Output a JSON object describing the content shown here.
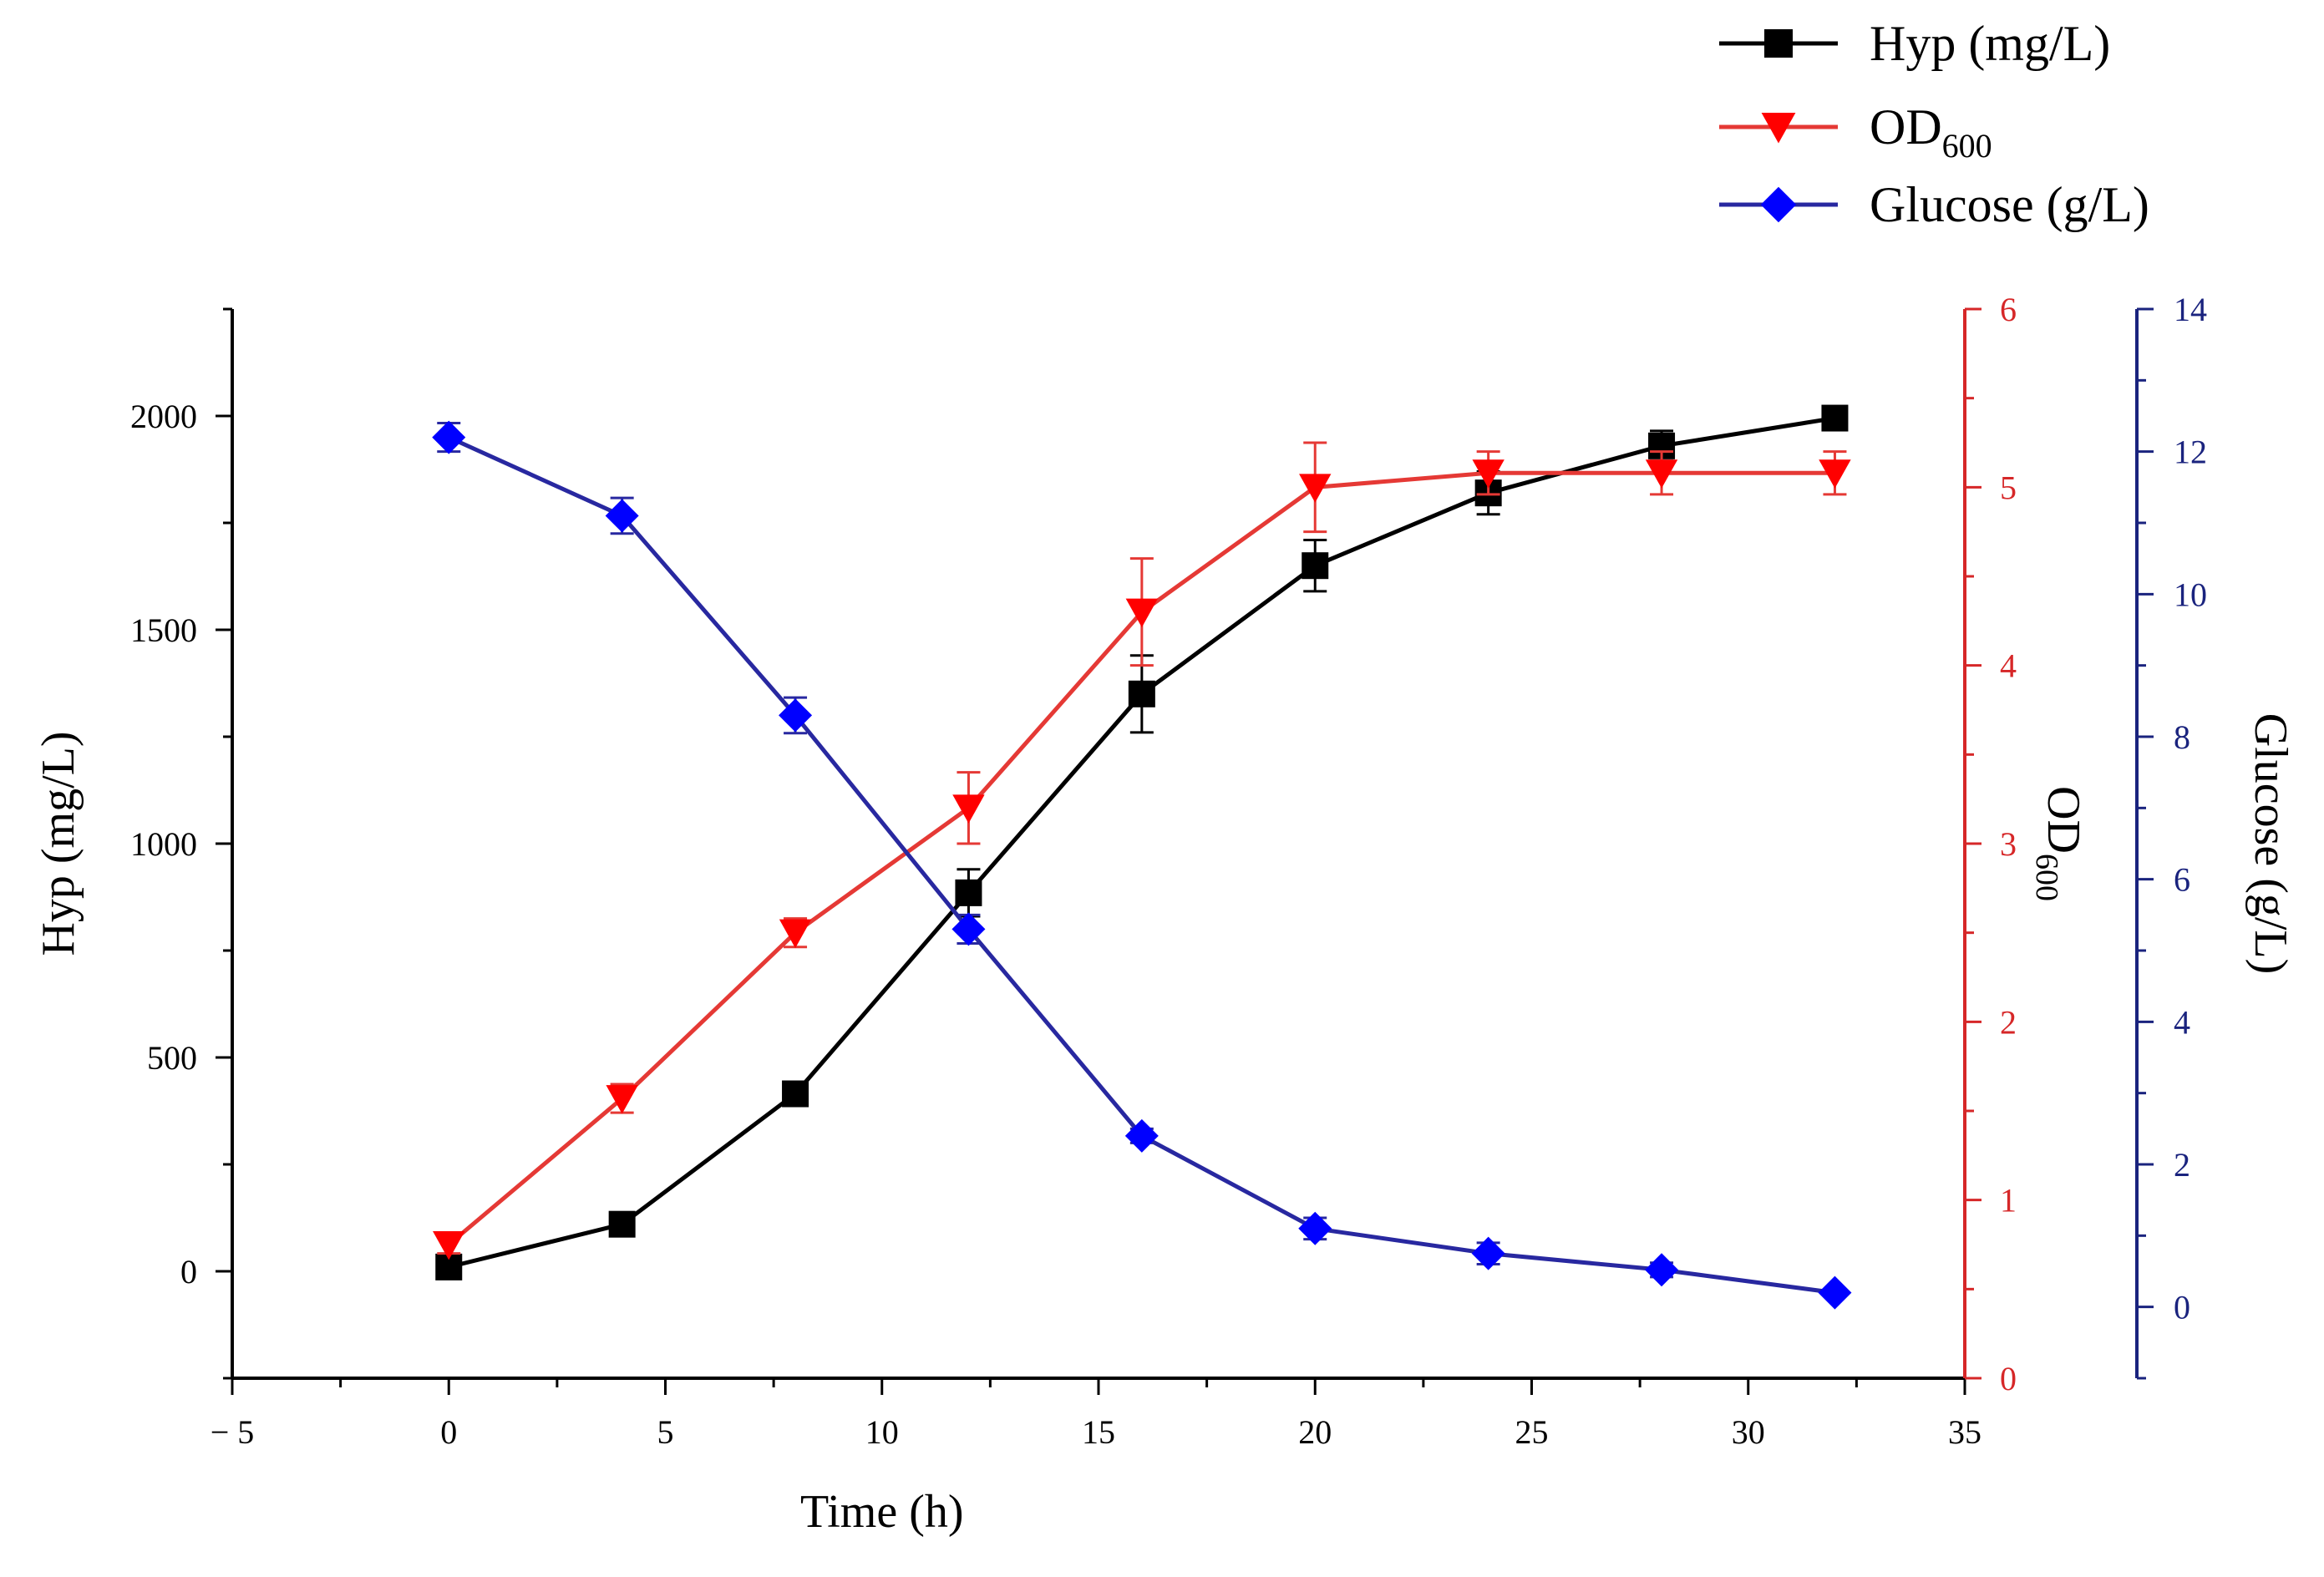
{
  "chart_data": {
    "type": "line",
    "title": "",
    "xlabel": "Time (h)",
    "xlim": [
      -5,
      35
    ],
    "xticks": [
      -5,
      0,
      5,
      10,
      15,
      20,
      25,
      30,
      35
    ],
    "xtick_labels": [
      "− 5",
      "0",
      "5",
      "10",
      "15",
      "20",
      "25",
      "30",
      "35"
    ],
    "x": [
      0,
      4,
      8,
      12,
      16,
      20,
      24,
      28,
      32
    ],
    "axes": {
      "left": {
        "label": "Hyp (mg/L)",
        "ylim": [
          -250,
          2250
        ],
        "ticks": [
          0,
          500,
          1000,
          1500,
          2000
        ],
        "tick_labels": [
          "0",
          "500",
          "1000",
          "1500",
          "2000"
        ],
        "color": "#000000"
      },
      "right1": {
        "label_main": "OD",
        "label_sub": "600",
        "ylim": [
          0,
          6
        ],
        "ticks": [
          0,
          1,
          2,
          3,
          4,
          5,
          6
        ],
        "tick_labels": [
          "0",
          "1",
          "2",
          "3",
          "4",
          "5",
          "6"
        ],
        "color": "#d62728"
      },
      "right2": {
        "label": "Glucose (g/L)",
        "ylim": [
          -1,
          14
        ],
        "ticks": [
          0,
          2,
          4,
          6,
          8,
          10,
          12,
          14
        ],
        "tick_labels": [
          "0",
          "2",
          "4",
          "6",
          "8",
          "10",
          "12",
          "14"
        ],
        "color": "#1a237e"
      }
    },
    "series": [
      {
        "name": "Hyp (mg/L)",
        "legend_main": "Hyp (mg/L)",
        "axis": "left",
        "marker": "square",
        "color": "#000000",
        "marker_color": "#000000",
        "values": [
          10,
          110,
          415,
          885,
          1350,
          1650,
          1820,
          1930,
          1995
        ],
        "errors": [
          10,
          15,
          25,
          55,
          90,
          60,
          50,
          35,
          20
        ]
      },
      {
        "name": "OD600",
        "legend_main": "OD",
        "legend_sub": "600",
        "axis": "right1",
        "marker": "triangle-down",
        "color": "#e53935",
        "marker_color": "#ff0000",
        "values": [
          0.75,
          1.57,
          2.5,
          3.2,
          4.3,
          5.0,
          5.08,
          5.08,
          5.08
        ],
        "errors": [
          0.05,
          0.08,
          0.08,
          0.2,
          0.3,
          0.25,
          0.12,
          0.12,
          0.12
        ]
      },
      {
        "name": "Glucose (g/L)",
        "legend_main": "Glucose (g/L)",
        "axis": "right2",
        "marker": "diamond",
        "color": "#2828a0",
        "marker_color": "#0000ff",
        "values": [
          12.2,
          11.1,
          8.3,
          5.3,
          2.4,
          1.1,
          0.75,
          0.52,
          0.2
        ],
        "errors": [
          0.2,
          0.25,
          0.25,
          0.2,
          0.1,
          0.15,
          0.15,
          0.1,
          0.05
        ]
      }
    ],
    "legend_position": "top-right"
  }
}
